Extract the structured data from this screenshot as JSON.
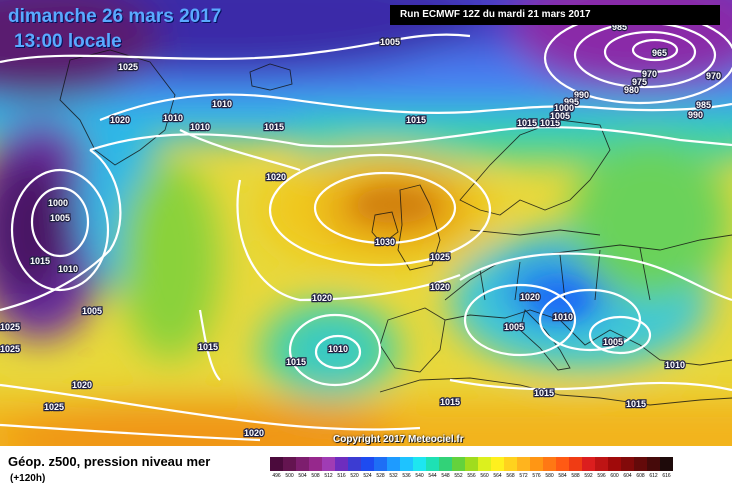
{
  "header": {
    "date_line": "dimanche 26 mars 2017",
    "time_line": "13:00 locale",
    "run_info": "Run ECMWF 12Z du mardi 21 mars 2017"
  },
  "copyright": "Copyright 2017 Meteociel.fr",
  "footer": {
    "title": "Géop. z500, pression niveau mer",
    "subtitle": "(+120h)"
  },
  "legend": {
    "labels": [
      "496",
      "500",
      "504",
      "508",
      "512",
      "516",
      "520",
      "524",
      "528",
      "532",
      "536",
      "540",
      "544",
      "548",
      "552",
      "556",
      "560",
      "564",
      "568",
      "572",
      "576",
      "580",
      "584",
      "588",
      "592",
      "596",
      "600",
      "604",
      "608",
      "612",
      "616"
    ],
    "colors": [
      "#4b0a3c",
      "#641450",
      "#7d1e6e",
      "#96288c",
      "#a03cb4",
      "#6e2dbe",
      "#3c3cd2",
      "#1e4bf0",
      "#1e6ef5",
      "#1e9bff",
      "#1ec3ff",
      "#1ee6f0",
      "#1ee1b4",
      "#32d278",
      "#64d23c",
      "#a0dc1e",
      "#dcf01e",
      "#fff01e",
      "#ffd21e",
      "#ffb41e",
      "#ff9614",
      "#ff7814",
      "#ff5a14",
      "#f03c14",
      "#dc1e1e",
      "#be1414",
      "#a00a0a",
      "#820a0a",
      "#640a0a",
      "#460a0a",
      "#1e0a0a"
    ]
  },
  "isobar_labels": [
    {
      "text": "1025"
    },
    {
      "text": "1005"
    },
    {
      "text": "1015"
    },
    {
      "text": "1020"
    },
    {
      "text": "1010"
    },
    {
      "text": "1010"
    },
    {
      "text": "1010"
    },
    {
      "text": "1015"
    },
    {
      "text": "1020"
    },
    {
      "text": "1000"
    },
    {
      "text": "1005"
    },
    {
      "text": "1015"
    },
    {
      "text": "1010"
    },
    {
      "text": "1005"
    },
    {
      "text": "1025"
    },
    {
      "text": "1025"
    },
    {
      "text": "1020"
    },
    {
      "text": "1025"
    },
    {
      "text": "1020"
    },
    {
      "text": "1030"
    },
    {
      "text": "1025"
    },
    {
      "text": "1020"
    },
    {
      "text": "1020"
    },
    {
      "text": "1015"
    },
    {
      "text": "1015"
    },
    {
      "text": "1010"
    },
    {
      "text": "1015"
    },
    {
      "text": "1015"
    },
    {
      "text": "1015"
    },
    {
      "text": "1020"
    },
    {
      "text": "1005"
    },
    {
      "text": "1010"
    },
    {
      "text": "1005"
    },
    {
      "text": "1010"
    },
    {
      "text": "1015"
    },
    {
      "text": "1015"
    },
    {
      "text": "965"
    },
    {
      "text": "970"
    },
    {
      "text": "970"
    },
    {
      "text": "975"
    },
    {
      "text": "980"
    },
    {
      "text": "985"
    },
    {
      "text": "990"
    },
    {
      "text": "990"
    },
    {
      "text": "995"
    },
    {
      "text": "1000"
    },
    {
      "text": "1005"
    },
    {
      "text": "985"
    }
  ]
}
